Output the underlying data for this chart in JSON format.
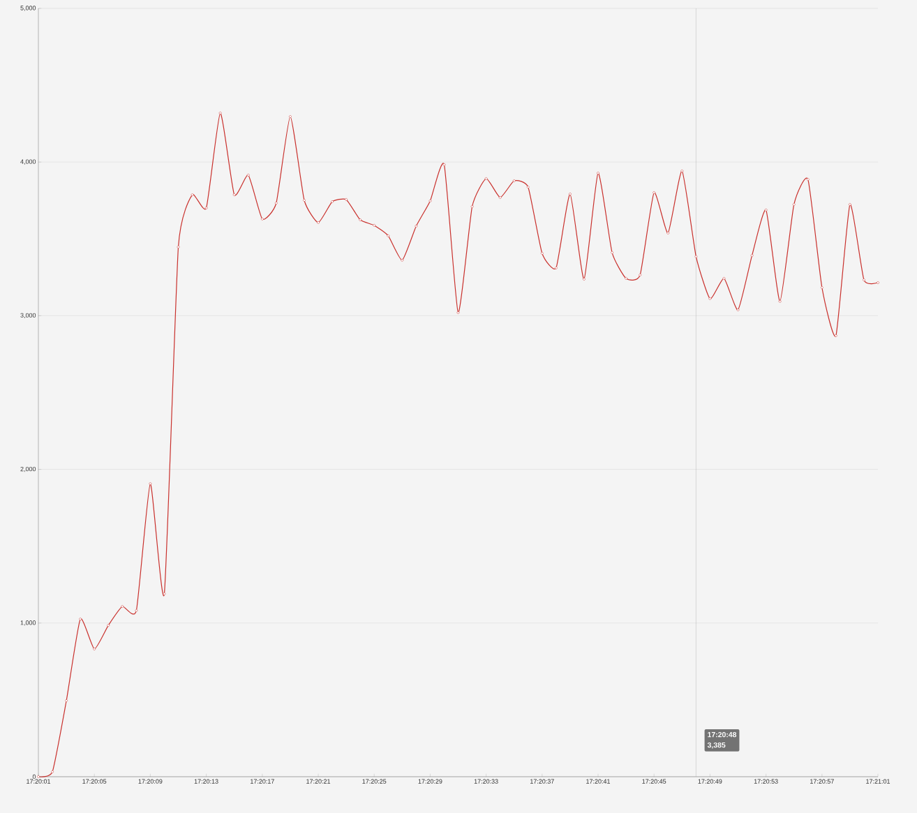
{
  "chart_data": {
    "type": "line",
    "color": "#c9302c",
    "marker": "circle",
    "grid": "y",
    "x": [
      17.333611,
      17.333889,
      17.334167,
      17.334444,
      17.334722,
      17.335,
      17.335278,
      17.335556,
      17.335833,
      17.336111,
      17.336389,
      17.336667,
      17.336944,
      17.337222,
      17.3375,
      17.337778,
      17.338056,
      17.338333,
      17.338611,
      17.338889,
      17.339167,
      17.339444,
      17.339722,
      17.34,
      17.340278,
      17.340556,
      17.340833,
      17.341111,
      17.341389,
      17.341667,
      17.341944,
      17.342222,
      17.3425,
      17.342778,
      17.343056,
      17.343333,
      17.343611,
      17.343889,
      17.344167,
      17.344444,
      17.344722,
      17.345,
      17.345278,
      17.345556,
      17.345833,
      17.346111,
      17.346389,
      17.346667,
      17.346944,
      17.347222,
      17.3475,
      17.347778,
      17.348056,
      17.348333,
      17.348611,
      17.348889,
      17.349167,
      17.349444,
      17.349722,
      17.35,
      17.350278
    ],
    "values": [
      0,
      32,
      495,
      1026,
      831,
      985,
      1108,
      1081,
      1907,
      1190,
      3447,
      3787,
      3701,
      4319,
      3787,
      3915,
      3629,
      3733,
      4296,
      3751,
      3606,
      3742,
      3756,
      3624,
      3588,
      3520,
      3361,
      3583,
      3747,
      3983,
      3020,
      3710,
      3892,
      3769,
      3878,
      3837,
      3406,
      3311,
      3792,
      3238,
      3928,
      3411,
      3243,
      3265,
      3801,
      3538,
      3942,
      3385,
      3111,
      3243,
      3038,
      3392,
      3688,
      3093,
      3724,
      3887,
      3183,
      2870,
      3724,
      3233,
      3215
    ],
    "xlim": [
      17.333611,
      17.350278
    ],
    "xticks": [
      {
        "value": 17.333611,
        "label": "17:20:01"
      },
      {
        "value": 17.334722,
        "label": "17:20:05"
      },
      {
        "value": 17.335833,
        "label": "17:20:09"
      },
      {
        "value": 17.336944,
        "label": "17:20:13"
      },
      {
        "value": 17.338056,
        "label": "17:20:17"
      },
      {
        "value": 17.339167,
        "label": "17:20:21"
      },
      {
        "value": 17.340278,
        "label": "17:20:25"
      },
      {
        "value": 17.341389,
        "label": "17:20:29"
      },
      {
        "value": 17.3425,
        "label": "17:20:33"
      },
      {
        "value": 17.343611,
        "label": "17:20:37"
      },
      {
        "value": 17.344722,
        "label": "17:20:41"
      },
      {
        "value": 17.345833,
        "label": "17:20:45"
      },
      {
        "value": 17.346944,
        "label": "17:20:49"
      },
      {
        "value": 17.348056,
        "label": "17:20:53"
      },
      {
        "value": 17.349167,
        "label": "17:20:57"
      },
      {
        "value": 17.350278,
        "label": "17:21:01"
      }
    ],
    "ylim": [
      0,
      5000
    ],
    "yticks": [
      {
        "value": 0,
        "label": "0"
      },
      {
        "value": 1000,
        "label": "1,000"
      },
      {
        "value": 2000,
        "label": "2,000"
      },
      {
        "value": 3000,
        "label": "3,000"
      },
      {
        "value": 4000,
        "label": "4,000"
      },
      {
        "value": 5000,
        "label": "5,000"
      }
    ],
    "ref_lines": [
      {
        "axis": "x",
        "value": 17.346667,
        "color": "#aaaaaa"
      }
    ],
    "annotations": [
      "17:20:48",
      "3,385"
    ]
  }
}
